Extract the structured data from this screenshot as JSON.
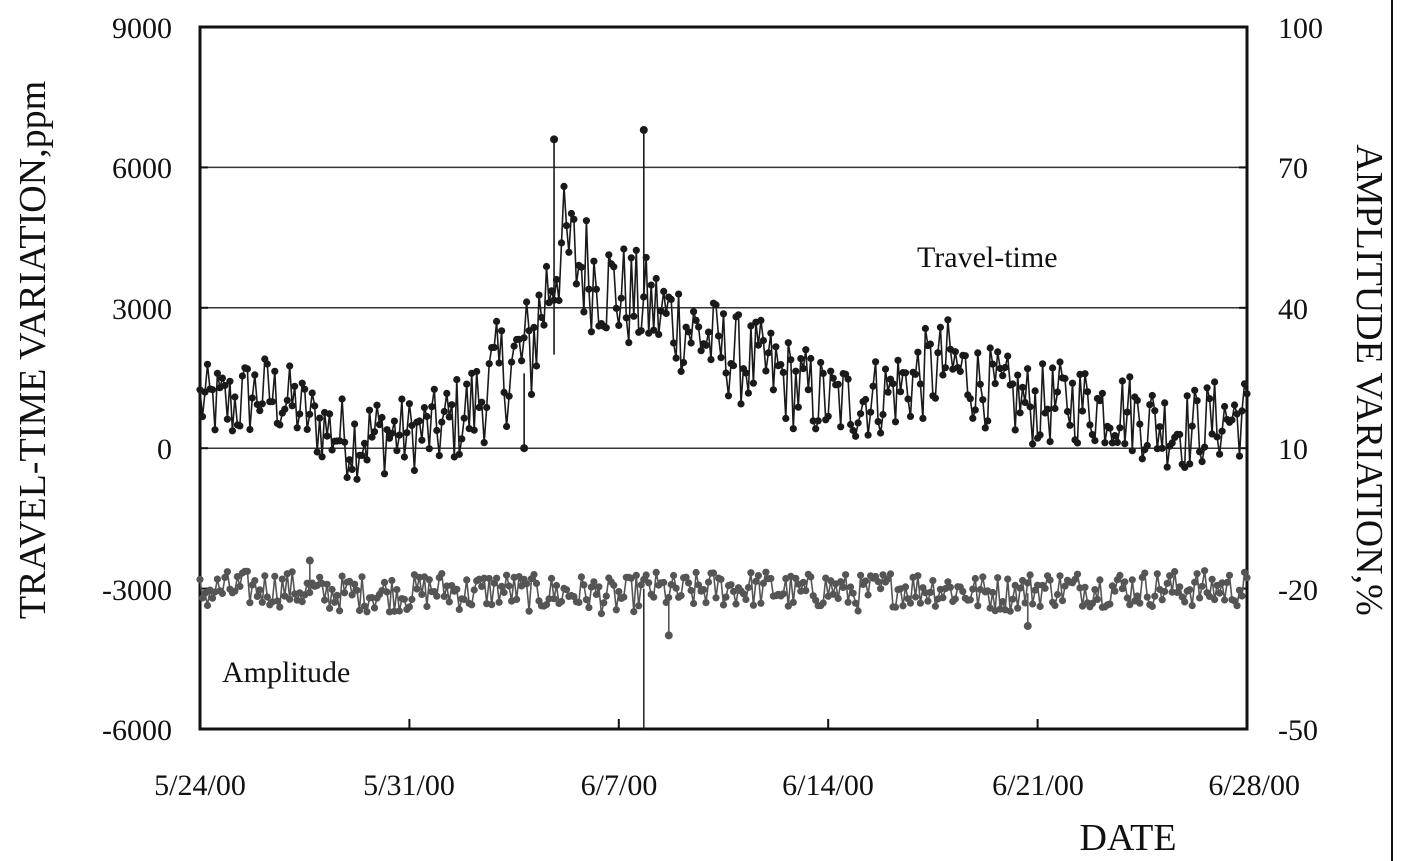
{
  "chart_data": {
    "type": "line",
    "xlabel": "DATE",
    "ylabel_left": "TRAVEL-TIME VARIATION,ppm",
    "ylabel_right": "AMPLITUDE VARIATION,%",
    "x_range": [
      "5/24/00",
      "6/28/00"
    ],
    "x_ticks": [
      "5/24/00",
      "5/31/00",
      "6/7/00",
      "6/14/00",
      "6/21/00",
      "6/28/00"
    ],
    "ylim_left": [
      -6000,
      9000
    ],
    "y_ticks_left": [
      "-6000",
      "-3000",
      "0",
      "3000",
      "6000",
      "9000"
    ],
    "ylim_right": [
      -50,
      100
    ],
    "y_ticks_right": [
      "-50",
      "-20",
      "10",
      "40",
      "70",
      "100"
    ],
    "grid": "horizontal lines at 0, 3000 and 6000",
    "annotations": {
      "travel_time": "Travel-time",
      "amplitude": "Amplitude"
    },
    "series": [
      {
        "name": "Travel-time",
        "axis": "left",
        "color": "#1a1a1a",
        "x": [
          "5/24/00",
          "5/25/00",
          "5/26/00",
          "5/27/00",
          "5/28/00",
          "5/29/00",
          "5/30/00",
          "5/31/00",
          "6/1/00",
          "6/2/00",
          "6/3/00",
          "6/4/00",
          "6/5/00",
          "6/6/00",
          "6/7/00",
          "6/8/00",
          "6/9/00",
          "6/10/00",
          "6/11/00",
          "6/12/00",
          "6/13/00",
          "6/14/00",
          "6/15/00",
          "6/16/00",
          "6/17/00",
          "6/18/00",
          "6/19/00",
          "6/20/00",
          "6/21/00",
          "6/22/00",
          "6/23/00",
          "6/24/00",
          "6/25/00",
          "6/26/00",
          "6/27/00",
          "6/28/00"
        ],
        "y": [
          1000,
          900,
          1200,
          1000,
          500,
          200,
          300,
          300,
          400,
          800,
          1600,
          2000,
          4300,
          3800,
          3300,
          3000,
          2700,
          2300,
          1900,
          1700,
          1300,
          1000,
          1000,
          1200,
          1500,
          1800,
          1400,
          1100,
          900,
          1000,
          900,
          800,
          500,
          400,
          600,
          700
        ],
        "spread_y": [
          800,
          900,
          900,
          800,
          800,
          900,
          900,
          800,
          900,
          1000,
          1200,
          1400,
          1500,
          1300,
          1200,
          1100,
          1100,
          1000,
          1000,
          1000,
          1000,
          900,
          900,
          900,
          1000,
          1000,
          900,
          900,
          900,
          900,
          900,
          900,
          900,
          900,
          900,
          900
        ],
        "spikes": [
          {
            "x": "6/4/00",
            "y": 6600
          },
          {
            "x": "6/7/00",
            "y": 6800
          },
          {
            "x": "6/3/00",
            "y": 0
          }
        ]
      },
      {
        "name": "Amplitude",
        "axis": "right",
        "color": "#555555",
        "x": [
          "5/24/00",
          "5/25/00",
          "5/26/00",
          "5/27/00",
          "5/28/00",
          "5/29/00",
          "5/30/00",
          "5/31/00",
          "6/1/00",
          "6/2/00",
          "6/3/00",
          "6/4/00",
          "6/5/00",
          "6/6/00",
          "6/7/00",
          "6/8/00",
          "6/9/00",
          "6/10/00",
          "6/11/00",
          "6/12/00",
          "6/13/00",
          "6/14/00",
          "6/15/00",
          "6/16/00",
          "6/17/00",
          "6/18/00",
          "6/19/00",
          "6/20/00",
          "6/21/00",
          "6/22/00",
          "6/23/00",
          "6/24/00",
          "6/25/00",
          "6/26/00",
          "6/27/00",
          "6/28/00"
        ],
        "y": [
          -21,
          -20,
          -20,
          -20,
          -21,
          -21,
          -21,
          -21,
          -20,
          -21,
          -20,
          -21,
          -21,
          -21,
          -22,
          -20,
          -21,
          -20,
          -20,
          -20,
          -21,
          -20,
          -21,
          -20,
          -20,
          -20,
          -21,
          -21,
          -20,
          -20,
          -20,
          -20,
          -20,
          -20,
          -20,
          -20
        ],
        "spread_y": [
          4,
          4,
          4,
          4,
          4,
          4,
          4,
          4,
          4,
          4,
          4,
          4,
          4,
          4,
          4,
          4,
          4,
          4,
          4,
          4,
          4,
          4,
          4,
          4,
          4,
          4,
          4,
          4,
          4,
          4,
          4,
          4,
          4,
          4,
          4,
          4
        ],
        "spikes": [
          {
            "x": "6/7/00",
            "y": -30
          },
          {
            "x": "6/19/00",
            "y": -28
          },
          {
            "x": "5/26/00",
            "y": -14
          }
        ]
      }
    ]
  }
}
